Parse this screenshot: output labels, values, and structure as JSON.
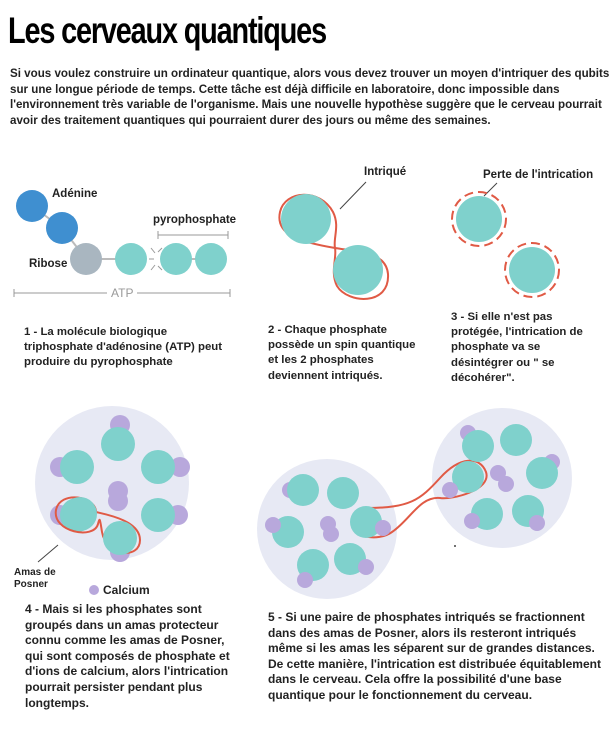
{
  "title": "Les cerveaux quantiques",
  "intro": "Si vous voulez construire un ordinateur quantique, alors vous devez trouver un moyen d'intriquer des qubits sur une longue période de temps. Cette tâche est déjà difficile en laboratoire, donc impossible dans l'environnement très variable de l'organisme. Mais une nouvelle hypothèse suggère que le cerveau pourrait avoir des traitement quantiques qui pourraient durer des jours ou même des semaines.",
  "panel1": {
    "adenine": "Adénine",
    "ribose": "Ribose",
    "pyrophosphate": "pyrophosphate",
    "atp": "ATP",
    "caption": "1 - La molécule biologique triphosphate d'adénosine (ATP) peut produire du pyrophosphate"
  },
  "panel2": {
    "label": "Intriqué",
    "caption": "2 - Chaque phosphate possède un spin quantique et les 2 phosphates deviennent intriqués."
  },
  "panel3": {
    "label": "Perte de l'intrication",
    "caption": "3 - Si elle n'est pas protégée, l'intrication de phosphate va se désintégrer ou \" se décohérer\"."
  },
  "panel4": {
    "amas": "Amas de Posner",
    "calcium": "Calcium",
    "caption": "4 - Mais si les phosphates sont groupés dans un amas protecteur connu comme les amas de Posner, qui sont composés de phosphate et d'ions de calcium, alors l'intrication pourrait persister pendant plus longtemps."
  },
  "panel5": {
    "caption": "5 - Si une paire de phosphates intriqués se fractionnent dans des amas de Posner, alors ils resteront intriqués même si les amas les séparent sur de grandes distances. De cette manière, l'intrication est distribuée équitablement dans le cerveau. Cela offre la possibilité d'une base quantique pour le fonctionnement du cerveau."
  },
  "colors": {
    "phosphate": "#7fd1cc",
    "adenine": "#3f8fd0",
    "ribose": "#a9b6c0",
    "calcium": "#b8a8dc",
    "entangle": "#e05a45",
    "cluster": "#e7e9f4"
  }
}
